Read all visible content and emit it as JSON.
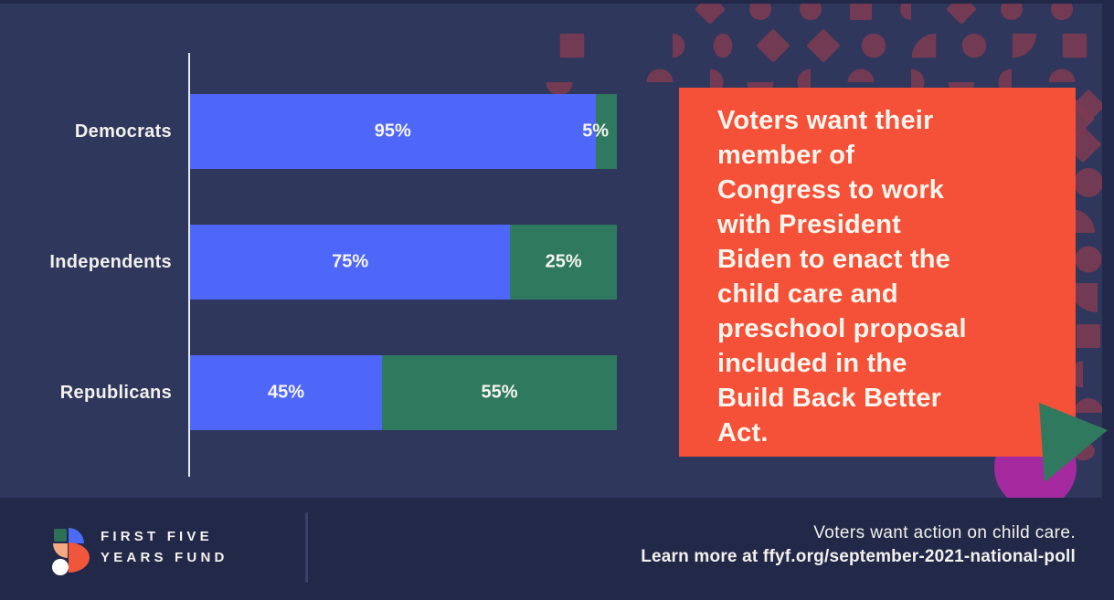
{
  "page": {
    "bg_outer": "#222948",
    "bg_panel": "#2f375c"
  },
  "chart_data": {
    "type": "bar",
    "orientation": "horizontal",
    "stacked": true,
    "categories": [
      "Democrats",
      "Independents",
      "Republicans"
    ],
    "series": [
      {
        "name": "blue-segment",
        "color": "#4f67f9",
        "values": [
          95,
          75,
          45
        ]
      },
      {
        "name": "green-segment",
        "color": "#2f7a5e",
        "values": [
          5,
          25,
          55
        ]
      }
    ],
    "value_label_suffix": "%",
    "xlim": [
      0,
      100
    ],
    "grid": false,
    "legend": "none",
    "title": ""
  },
  "callout": {
    "bg": "#f45138",
    "lines": [
      "Voters want their",
      "member of",
      "Congress to work",
      "with President",
      "Biden to enact the",
      "child care and",
      "preschool proposal",
      "included in the",
      "Build Back Better",
      "Act."
    ]
  },
  "decor": {
    "pattern_color": "#7a3b52",
    "magenta_circle_color": "#a52aa0",
    "triangle_color": "#2f7a5e",
    "axis_color": "#e4e8f4"
  },
  "footer": {
    "brand_lines": [
      "FIRST FIVE",
      "YEARS FUND"
    ],
    "tagline": "Voters want action on child care.",
    "learn_more": "Learn more at ffyf.org/september-2021-national-poll",
    "logo_colors": {
      "square": "#2e6f58",
      "quarter_blue": "#4c6af5",
      "quarter_peach": "#f5a983",
      "half_red": "#f0563b",
      "dot": "#ffffff"
    }
  }
}
